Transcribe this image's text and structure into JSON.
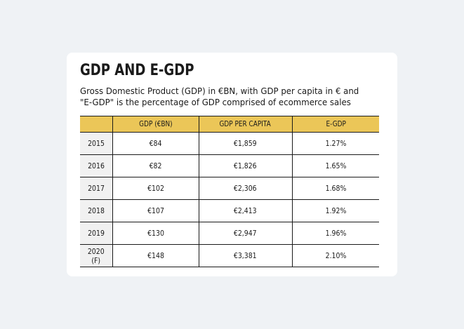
{
  "chart_data": {
    "type": "table",
    "title": "GDP AND E-GDP",
    "subtitle_line1": "Gross Domestic Product (GDP) in €BN, with GDP per capita in € and",
    "subtitle_line2": "\"E-GDP\" is the percentage of GDP comprised of ecommerce sales",
    "columns": [
      "",
      "GDP (€BN)",
      "GDP PER CAPITA",
      "E-GDP"
    ],
    "rows": [
      {
        "year": "2015",
        "gdp": "€84",
        "per_capita": "€1,859",
        "egdp": "1.27%"
      },
      {
        "year": "2016",
        "gdp": "€82",
        "per_capita": "€1,826",
        "egdp": "1.65%"
      },
      {
        "year": "2017",
        "gdp": "€102",
        "per_capita": "€2,306",
        "egdp": "1.68%"
      },
      {
        "year": "2018",
        "gdp": "€107",
        "per_capita": "€2,413",
        "egdp": "1.92%"
      },
      {
        "year": "2019",
        "gdp": "€130",
        "per_capita": "€2,947",
        "egdp": "1.96%"
      },
      {
        "year": "2020 (F)",
        "gdp": "€148",
        "per_capita": "€3,381",
        "egdp": "2.10%"
      }
    ],
    "colors": {
      "header_bg": "#ebc658",
      "year_bg": "#f1f1f1",
      "page_bg": "#eff2f5",
      "card_bg": "#ffffff"
    }
  }
}
